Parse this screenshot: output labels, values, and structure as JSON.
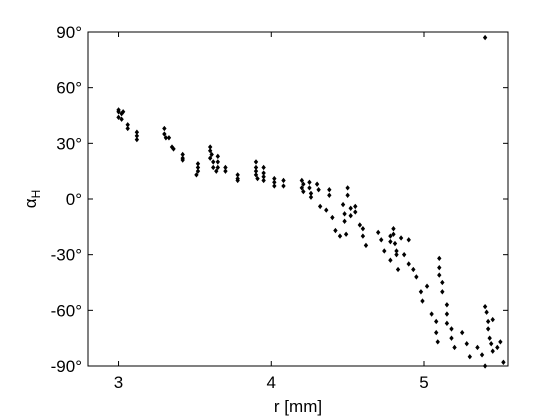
{
  "chart_data": {
    "type": "scatter",
    "title": "",
    "xlabel": "r [mm]",
    "ylabel": {
      "main": "α",
      "sub": "H"
    },
    "xlim": [
      2.8,
      5.55
    ],
    "ylim": [
      -90,
      90
    ],
    "x_ticks": [
      3,
      4,
      5
    ],
    "x_tick_labels": [
      "3",
      "4",
      "5"
    ],
    "y_ticks": [
      90,
      60,
      30,
      0,
      -30,
      -60,
      -90
    ],
    "y_tick_labels": [
      "90°",
      "60°",
      "30°",
      "0°",
      "-30°",
      "-60°",
      "-90°"
    ],
    "grid": false,
    "legend": "none",
    "marker_color": "#000000",
    "series": [
      {
        "points": [
          [
            3.0,
            48
          ],
          [
            3.0,
            47
          ],
          [
            3.02,
            46
          ],
          [
            3.0,
            44
          ],
          [
            3.02,
            43
          ],
          [
            3.03,
            47
          ],
          [
            3.06,
            40
          ],
          [
            3.06,
            38
          ],
          [
            3.12,
            36
          ],
          [
            3.12,
            34
          ],
          [
            3.12,
            32
          ],
          [
            3.3,
            38
          ],
          [
            3.3,
            35
          ],
          [
            3.31,
            33
          ],
          [
            3.33,
            33
          ],
          [
            3.35,
            28
          ],
          [
            3.36,
            27
          ],
          [
            3.42,
            24
          ],
          [
            3.42,
            22
          ],
          [
            3.42,
            21
          ],
          [
            3.52,
            19
          ],
          [
            3.52,
            17
          ],
          [
            3.52,
            15
          ],
          [
            3.51,
            13
          ],
          [
            3.6,
            28
          ],
          [
            3.6,
            26
          ],
          [
            3.61,
            24
          ],
          [
            3.6,
            22
          ],
          [
            3.62,
            20
          ],
          [
            3.62,
            17
          ],
          [
            3.65,
            23
          ],
          [
            3.65,
            20
          ],
          [
            3.65,
            17
          ],
          [
            3.64,
            15
          ],
          [
            3.7,
            17
          ],
          [
            3.7,
            15
          ],
          [
            3.78,
            13
          ],
          [
            3.78,
            11
          ],
          [
            3.78,
            10
          ],
          [
            3.9,
            20
          ],
          [
            3.9,
            17
          ],
          [
            3.9,
            15
          ],
          [
            3.9,
            13
          ],
          [
            3.91,
            11
          ],
          [
            3.95,
            17
          ],
          [
            3.95,
            14
          ],
          [
            3.95,
            12
          ],
          [
            3.95,
            10
          ],
          [
            4.02,
            11
          ],
          [
            4.02,
            9
          ],
          [
            4.02,
            7
          ],
          [
            4.08,
            10
          ],
          [
            4.08,
            7
          ],
          [
            4.2,
            10
          ],
          [
            4.21,
            8
          ],
          [
            4.2,
            6
          ],
          [
            4.21,
            4
          ],
          [
            4.25,
            9
          ],
          [
            4.25,
            6
          ],
          [
            4.26,
            3
          ],
          [
            4.26,
            1
          ],
          [
            4.3,
            8
          ],
          [
            4.31,
            5
          ],
          [
            4.32,
            -4
          ],
          [
            4.38,
            5
          ],
          [
            4.38,
            2
          ],
          [
            4.36,
            -6
          ],
          [
            4.4,
            -10
          ],
          [
            4.42,
            -17
          ],
          [
            4.45,
            -20
          ],
          [
            4.47,
            -3
          ],
          [
            4.48,
            -8
          ],
          [
            4.48,
            -12
          ],
          [
            4.49,
            -19
          ],
          [
            4.5,
            6
          ],
          [
            4.5,
            2
          ],
          [
            4.52,
            -5
          ],
          [
            4.52,
            -9
          ],
          [
            4.55,
            -7
          ],
          [
            4.55,
            -4
          ],
          [
            4.58,
            -14
          ],
          [
            4.6,
            -20
          ],
          [
            4.6,
            -16
          ],
          [
            4.62,
            -25
          ],
          [
            4.7,
            -18
          ],
          [
            4.72,
            -22
          ],
          [
            4.74,
            -28
          ],
          [
            4.78,
            -20
          ],
          [
            4.78,
            -23
          ],
          [
            4.78,
            -33
          ],
          [
            4.8,
            -16
          ],
          [
            4.8,
            -19
          ],
          [
            4.81,
            -24
          ],
          [
            4.82,
            -28
          ],
          [
            4.82,
            -30
          ],
          [
            4.83,
            -38
          ],
          [
            4.85,
            -21
          ],
          [
            4.87,
            -30
          ],
          [
            4.9,
            -22
          ],
          [
            4.9,
            -35
          ],
          [
            4.93,
            -38
          ],
          [
            4.95,
            -42
          ],
          [
            4.98,
            -50
          ],
          [
            4.99,
            -55
          ],
          [
            5.02,
            -47
          ],
          [
            5.05,
            -62
          ],
          [
            5.08,
            -66
          ],
          [
            5.08,
            -72
          ],
          [
            5.09,
            -77
          ],
          [
            5.1,
            -32
          ],
          [
            5.1,
            -37
          ],
          [
            5.1,
            -41
          ],
          [
            5.12,
            -45
          ],
          [
            5.12,
            -50
          ],
          [
            5.15,
            -57
          ],
          [
            5.15,
            -62
          ],
          [
            5.15,
            -67
          ],
          [
            5.18,
            -70
          ],
          [
            5.18,
            -75
          ],
          [
            5.2,
            -80
          ],
          [
            5.25,
            -72
          ],
          [
            5.28,
            -78
          ],
          [
            5.3,
            -85
          ],
          [
            5.35,
            -80
          ],
          [
            5.38,
            -84
          ],
          [
            5.4,
            -58
          ],
          [
            5.41,
            -61
          ],
          [
            5.42,
            -66
          ],
          [
            5.42,
            -70
          ],
          [
            5.43,
            -75
          ],
          [
            5.44,
            -78
          ],
          [
            5.45,
            -82
          ],
          [
            5.48,
            -80
          ],
          [
            5.5,
            -77
          ],
          [
            5.45,
            -65
          ],
          [
            5.52,
            -88
          ],
          [
            5.4,
            -90
          ],
          [
            5.4,
            87
          ]
        ]
      }
    ]
  }
}
